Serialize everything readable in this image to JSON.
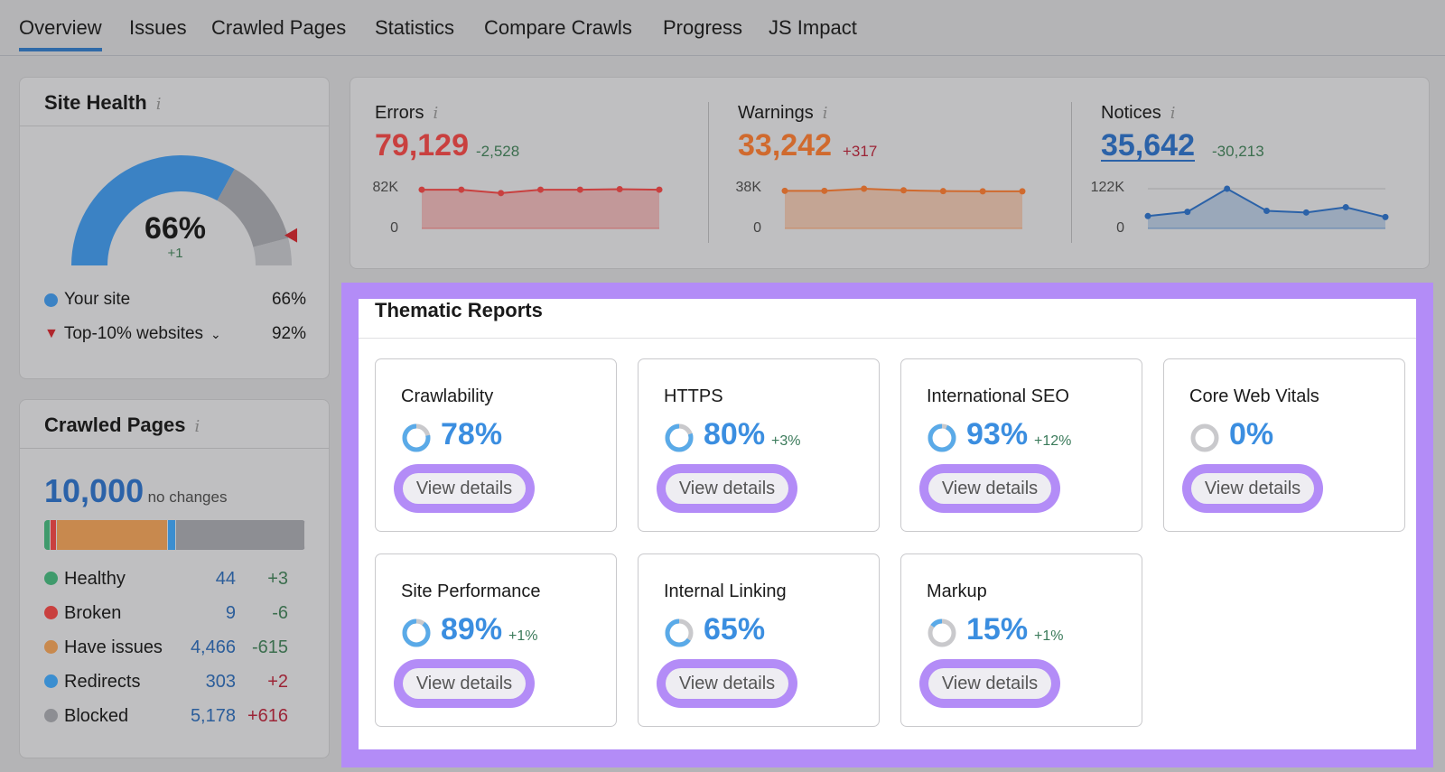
{
  "tabs": [
    "Overview",
    "Issues",
    "Crawled Pages",
    "Statistics",
    "Compare Crawls",
    "Progress",
    "JS Impact"
  ],
  "site_health": {
    "title": "Site Health",
    "value": "66%",
    "delta": "+1",
    "percent": 66,
    "top10_percent": 92,
    "legend": [
      {
        "label": "Your site",
        "value": "66%",
        "color": "#3b82c4"
      },
      {
        "label": "Top-10% websites",
        "value": "92%",
        "color": "#b0262c"
      }
    ]
  },
  "metrics": [
    {
      "label": "Errors",
      "value": "79,129",
      "delta": "-2,528",
      "color": "#c9403f",
      "delta_color": "#3b6e4e",
      "ymax_label": "82K",
      "ymin_label": "0",
      "ymax": 82,
      "points": [
        80,
        80,
        73,
        80,
        80,
        81,
        80
      ]
    },
    {
      "label": "Warnings",
      "value": "33,242",
      "delta": "+317",
      "color": "#d06a2e",
      "delta_color": "#9c2436",
      "ymax_label": "38K",
      "ymin_label": "0",
      "ymax": 38,
      "points": [
        36,
        36,
        38,
        36.5,
        35.7,
        35.5,
        35.5
      ]
    },
    {
      "label": "Notices",
      "value": "35,642",
      "delta": "-30,213",
      "color": "#2b62a8",
      "delta_color": "#3b6e4e",
      "ymax_label": "122K",
      "ymin_label": "0",
      "ymax": 122,
      "points": [
        38,
        51,
        122,
        54,
        49,
        65,
        35
      ]
    }
  ],
  "crawled_pages": {
    "title": "Crawled Pages",
    "total": "10,000",
    "note": "no changes",
    "rows": [
      {
        "label": "Healthy",
        "value": "44",
        "delta": "+3",
        "color": "#3f9a6c",
        "delta_color": "#3b6e4e",
        "count": 44
      },
      {
        "label": "Broken",
        "value": "9",
        "delta": "-6",
        "color": "#c9403f",
        "delta_color": "#3b6e4e",
        "count": 9
      },
      {
        "label": "Have issues",
        "value": "4,466",
        "delta": "-615",
        "color": "#c8894e",
        "delta_color": "#3b6e4e",
        "count": 4466
      },
      {
        "label": "Redirects",
        "value": "303",
        "delta": "+2",
        "color": "#3b8ed0",
        "delta_color": "#9c2436",
        "count": 303
      },
      {
        "label": "Blocked",
        "value": "5,178",
        "delta": "+616",
        "color": "#8d8e93",
        "delta_color": "#9c2436",
        "count": 5178
      }
    ]
  },
  "thematic": {
    "title": "Thematic Reports",
    "button_label": "View details",
    "reports": [
      {
        "name": "Crawlability",
        "value": "78%",
        "percent": 78,
        "delta": ""
      },
      {
        "name": "HTTPS",
        "value": "80%",
        "percent": 80,
        "delta": "+3%"
      },
      {
        "name": "International SEO",
        "value": "93%",
        "percent": 93,
        "delta": "+12%"
      },
      {
        "name": "Core Web Vitals",
        "value": "0%",
        "percent": 0,
        "delta": ""
      },
      {
        "name": "Site Performance",
        "value": "89%",
        "percent": 89,
        "delta": "+1%"
      },
      {
        "name": "Internal Linking",
        "value": "65%",
        "percent": 65,
        "delta": ""
      },
      {
        "name": "Markup",
        "value": "15%",
        "percent": 15,
        "delta": "+1%"
      }
    ]
  }
}
